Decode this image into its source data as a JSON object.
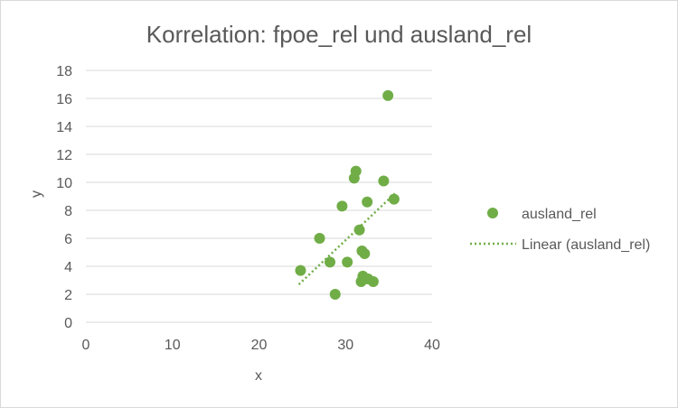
{
  "chart_data": {
    "type": "scatter",
    "title": "Korrelation: fpoe_rel und ausland_rel",
    "xlabel": "x",
    "ylabel": "y",
    "xlim": [
      0,
      40
    ],
    "ylim": [
      0,
      18
    ],
    "x_ticks": [
      "0",
      "10",
      "20",
      "30",
      "40"
    ],
    "y_ticks": [
      "0",
      "2",
      "4",
      "6",
      "8",
      "10",
      "12",
      "14",
      "16",
      "18"
    ],
    "grid": "horizontal",
    "legend_position": "right",
    "series": [
      {
        "name": "ausland_rel",
        "color": "#70ad47",
        "points": [
          {
            "x": 24.8,
            "y": 3.7
          },
          {
            "x": 27.0,
            "y": 6.0
          },
          {
            "x": 28.2,
            "y": 4.3
          },
          {
            "x": 28.8,
            "y": 2.0
          },
          {
            "x": 29.6,
            "y": 8.3
          },
          {
            "x": 30.2,
            "y": 4.3
          },
          {
            "x": 31.0,
            "y": 10.3
          },
          {
            "x": 31.2,
            "y": 10.8
          },
          {
            "x": 31.6,
            "y": 6.6
          },
          {
            "x": 31.8,
            "y": 2.9
          },
          {
            "x": 31.9,
            "y": 5.1
          },
          {
            "x": 32.0,
            "y": 3.3
          },
          {
            "x": 32.2,
            "y": 4.9
          },
          {
            "x": 32.5,
            "y": 8.6
          },
          {
            "x": 32.6,
            "y": 3.1
          },
          {
            "x": 33.2,
            "y": 2.9
          },
          {
            "x": 34.4,
            "y": 10.1
          },
          {
            "x": 34.9,
            "y": 16.2
          },
          {
            "x": 35.6,
            "y": 8.8
          }
        ]
      }
    ],
    "trendline": {
      "name": "Linear (ausland_rel)",
      "style": "dotted",
      "color": "#70ad47",
      "x": [
        24.6,
        35.7
      ],
      "y": [
        2.7,
        9.2
      ]
    }
  }
}
